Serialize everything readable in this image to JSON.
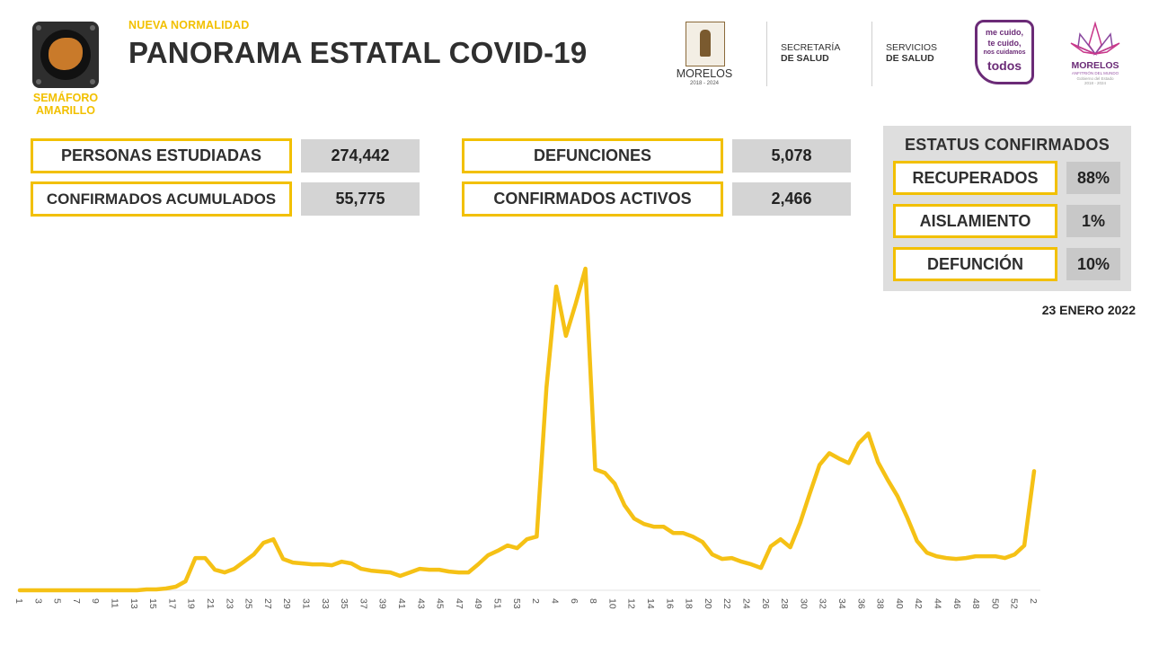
{
  "header": {
    "semaforo_line1": "SEMÁFORO",
    "semaforo_line2": "AMARILLO",
    "kicker": "NUEVA NORMALIDAD",
    "title": "PANORAMA ESTATAL COVID-19"
  },
  "logos": {
    "morelos_name": "MORELOS",
    "morelos_years": "2018 - 2024",
    "secretaria_line1": "SECRETARÍA",
    "secretaria_line2": "DE SALUD",
    "servicios_line1": "SERVICIOS",
    "servicios_line2": "DE SALUD",
    "mecuido_line1": "me cuido,",
    "mecuido_line2": "te cuido,",
    "mecuido_line3": "nos cuidamos",
    "mecuido_line4": "todos",
    "morelos2_name": "MORELOS",
    "morelos2_tagline": "ANFITRIÓN DEL MUNDO",
    "morelos2_sub": "Gobierno del Estado",
    "morelos2_years": "2018 - 2024",
    "colors": {
      "purple": "#6b2b77",
      "brand_yellow": "#f2c000"
    }
  },
  "stats": {
    "personas_estudiadas_label": "PERSONAS ESTUDIADAS",
    "personas_estudiadas_value": "274,442",
    "confirmados_acumulados_label": "CONFIRMADOS ACUMULADOS",
    "confirmados_acumulados_value": "55,775",
    "defunciones_label": "DEFUNCIONES",
    "defunciones_value": "5,078",
    "confirmados_activos_label": "CONFIRMADOS ACTIVOS",
    "confirmados_activos_value": "2,466"
  },
  "status": {
    "title": "ESTATUS CONFIRMADOS",
    "recuperados_label": "RECUPERADOS",
    "recuperados_value": "88%",
    "aislamiento_label": "AISLAMIENTO",
    "aislamiento_value": "1%",
    "defuncion_label": "DEFUNCIÓN",
    "defuncion_value": "10%"
  },
  "date": "23 ENERO 2022",
  "chart_data": {
    "type": "line",
    "title": "",
    "xlabel": "",
    "ylabel": "",
    "grid": false,
    "color": "#f2c000",
    "x_tick_labels": [
      "1",
      "3",
      "5",
      "7",
      "9",
      "11",
      "13",
      "15",
      "17",
      "19",
      "21",
      "23",
      "25",
      "27",
      "29",
      "31",
      "33",
      "35",
      "37",
      "39",
      "41",
      "43",
      "45",
      "47",
      "49",
      "51",
      "53",
      "2",
      "4",
      "6",
      "8",
      "10",
      "12",
      "14",
      "16",
      "18",
      "20",
      "22",
      "24",
      "26",
      "28",
      "30",
      "32",
      "34",
      "36",
      "38",
      "40",
      "42",
      "44",
      "46",
      "48",
      "50",
      "52",
      "2"
    ],
    "values": [
      0,
      0,
      0,
      0,
      0,
      0,
      0,
      0,
      0,
      0,
      0,
      0,
      0,
      1,
      1,
      2,
      4,
      10,
      36,
      36,
      23,
      20,
      24,
      32,
      40,
      53,
      57,
      35,
      31,
      30,
      29,
      29,
      28,
      32,
      30,
      24,
      22,
      21,
      20,
      16,
      20,
      24,
      23,
      23,
      21,
      20,
      20,
      29,
      39,
      44,
      50,
      47,
      57,
      60,
      226,
      339,
      284,
      320,
      359,
      135,
      131,
      119,
      95,
      80,
      74,
      71,
      71,
      64,
      64,
      60,
      54,
      40,
      35,
      36,
      32,
      29,
      25,
      49,
      57,
      48,
      75,
      108,
      140,
      153,
      147,
      142,
      164,
      175,
      143,
      123,
      105,
      81,
      55,
      42,
      38,
      36,
      35,
      36,
      38,
      38,
      38,
      36,
      40,
      50,
      133
    ]
  }
}
